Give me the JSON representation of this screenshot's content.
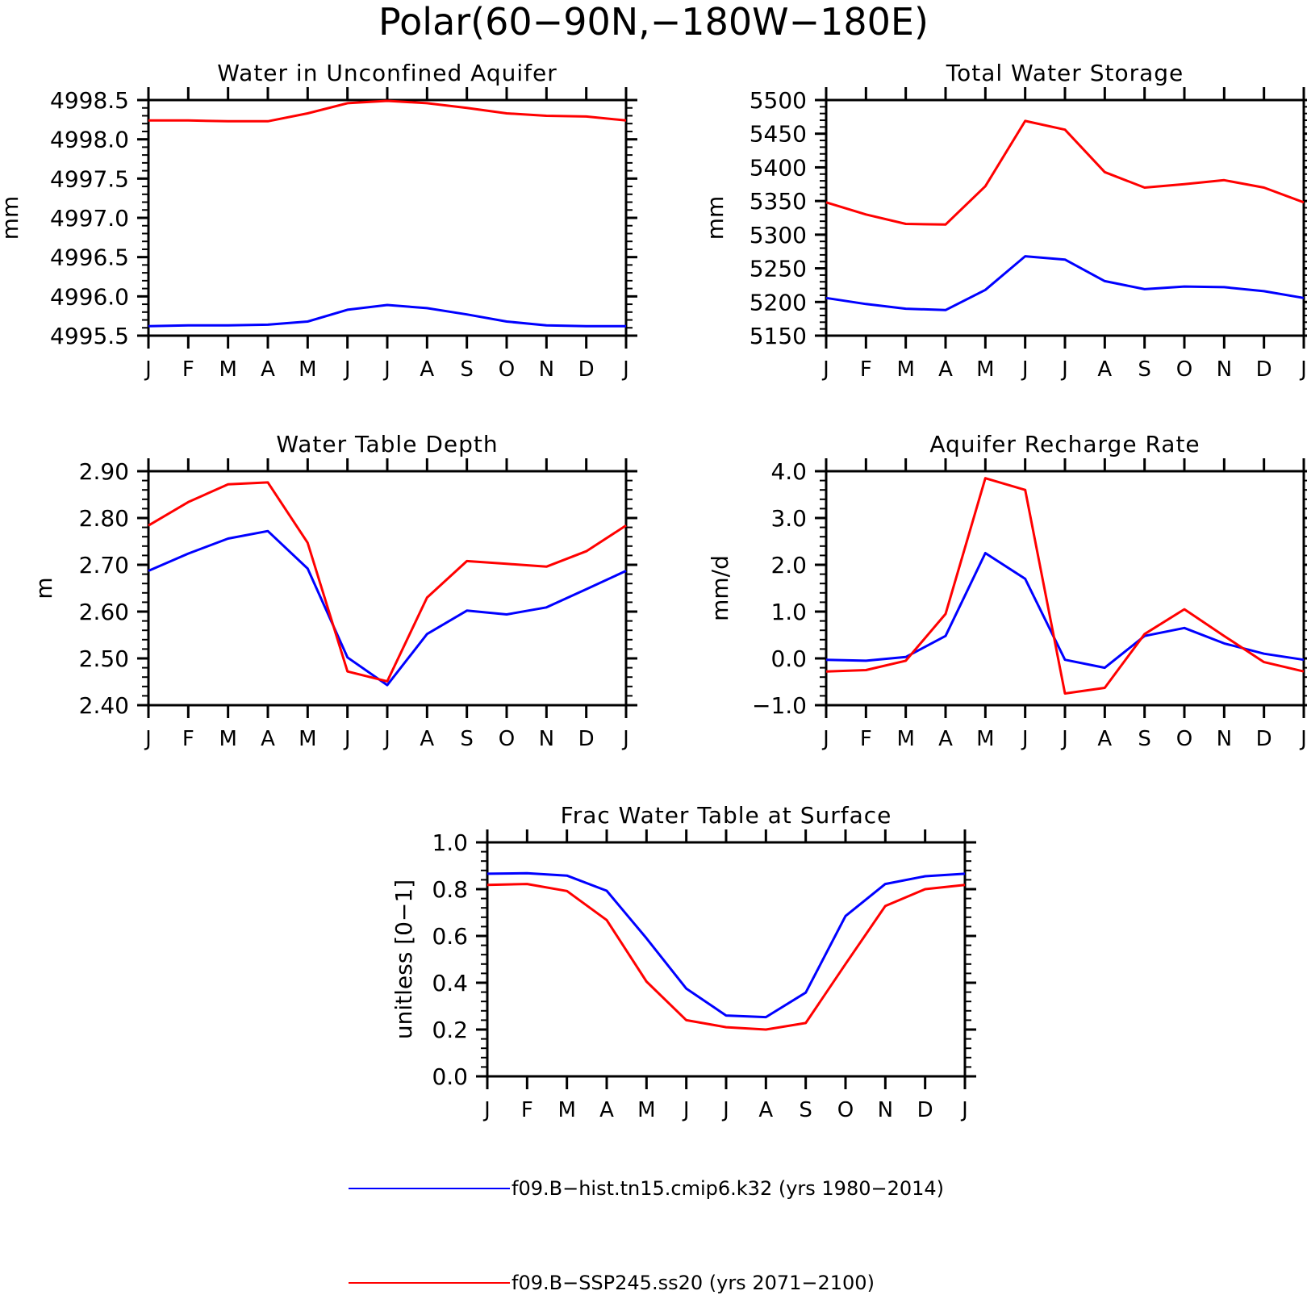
{
  "figure": {
    "title": "Polar(60−90N,−180W−180E)"
  },
  "colors": {
    "hist": "#0000ff",
    "ssp": "#ff0000",
    "axis": "#000000"
  },
  "legend": {
    "placement": "bottom-center",
    "entries": [
      {
        "label": "f09.B−hist.tn15.cmip6.k32 (yrs 1980−2014)",
        "color": "#0000ff"
      },
      {
        "label": "f09.B−SSP245.ss20 (yrs 2071−2100)",
        "color": "#ff0000"
      }
    ]
  },
  "chart_data": [
    {
      "type": "line",
      "title": "Water in Unconfined Aquifer",
      "xlabel": "",
      "ylabel": "mm",
      "x": [
        "J",
        "F",
        "M",
        "A",
        "M",
        "J",
        "J",
        "A",
        "S",
        "O",
        "N",
        "D",
        "J"
      ],
      "ylim": [
        4995.5,
        4998.5
      ],
      "yticks": [
        "4995.5",
        "4996.0",
        "4996.5",
        "4997.0",
        "4997.5",
        "4998.0",
        "4998.5"
      ],
      "series": [
        {
          "values": [
            4995.62,
            4995.63,
            4995.63,
            4995.64,
            4995.68,
            4995.83,
            4995.89,
            4995.85,
            4995.77,
            4995.68,
            4995.63,
            4995.62,
            4995.62
          ]
        },
        {
          "values": [
            4998.24,
            4998.24,
            4998.23,
            4998.23,
            4998.33,
            4998.46,
            4998.49,
            4998.46,
            4998.4,
            4998.33,
            4998.3,
            4998.29,
            4998.24
          ]
        }
      ]
    },
    {
      "type": "line",
      "title": "Total Water Storage",
      "xlabel": "",
      "ylabel": "mm",
      "x": [
        "J",
        "F",
        "M",
        "A",
        "M",
        "J",
        "J",
        "A",
        "S",
        "O",
        "N",
        "D",
        "J"
      ],
      "ylim": [
        5150,
        5500
      ],
      "yticks": [
        "5150",
        "5200",
        "5250",
        "5300",
        "5350",
        "5400",
        "5450",
        "5500"
      ],
      "series": [
        {
          "values": [
            5206,
            5197,
            5190,
            5188,
            5218,
            5268,
            5263,
            5231,
            5219,
            5223,
            5222,
            5216,
            5206
          ]
        },
        {
          "values": [
            5348,
            5330,
            5316,
            5315,
            5372,
            5469,
            5456,
            5393,
            5370,
            5375,
            5381,
            5370,
            5348
          ]
        }
      ]
    },
    {
      "type": "line",
      "title": "Water Table Depth",
      "xlabel": "",
      "ylabel": "m",
      "x": [
        "J",
        "F",
        "M",
        "A",
        "M",
        "J",
        "J",
        "A",
        "S",
        "O",
        "N",
        "D",
        "J"
      ],
      "ylim": [
        2.4,
        2.9
      ],
      "yticks": [
        "2.40",
        "2.50",
        "2.60",
        "2.70",
        "2.80",
        "2.90"
      ],
      "series": [
        {
          "values": [
            2.687,
            2.724,
            2.756,
            2.772,
            2.692,
            2.502,
            2.443,
            2.552,
            2.602,
            2.594,
            2.609,
            2.648,
            2.687
          ]
        },
        {
          "values": [
            2.784,
            2.834,
            2.872,
            2.876,
            2.747,
            2.472,
            2.451,
            2.63,
            2.708,
            2.702,
            2.696,
            2.729,
            2.784
          ]
        }
      ]
    },
    {
      "type": "line",
      "title": "Aquifer Recharge Rate",
      "xlabel": "",
      "ylabel": "mm/d",
      "x": [
        "J",
        "F",
        "M",
        "A",
        "M",
        "J",
        "J",
        "A",
        "S",
        "O",
        "N",
        "D",
        "J"
      ],
      "ylim": [
        -1.0,
        4.0
      ],
      "yticks": [
        "−1.0",
        "0.0",
        "1.0",
        "2.0",
        "3.0",
        "4.0"
      ],
      "series": [
        {
          "values": [
            -0.03,
            -0.05,
            0.03,
            0.48,
            2.25,
            1.7,
            -0.03,
            -0.2,
            0.48,
            0.65,
            0.32,
            0.1,
            -0.03
          ]
        },
        {
          "values": [
            -0.28,
            -0.25,
            -0.05,
            0.95,
            3.85,
            3.6,
            -0.75,
            -0.63,
            0.52,
            1.05,
            0.48,
            -0.08,
            -0.28
          ]
        }
      ]
    },
    {
      "type": "line",
      "title": "Frac Water Table at Surface",
      "xlabel": "",
      "ylabel": "unitless [0−1]",
      "x": [
        "J",
        "F",
        "M",
        "A",
        "M",
        "J",
        "J",
        "A",
        "S",
        "O",
        "N",
        "D",
        "J"
      ],
      "ylim": [
        0.0,
        1.0
      ],
      "yticks": [
        "0.0",
        "0.2",
        "0.4",
        "0.6",
        "0.8",
        "1.0"
      ],
      "series": [
        {
          "values": [
            0.866,
            0.868,
            0.858,
            0.793,
            0.59,
            0.375,
            0.26,
            0.253,
            0.358,
            0.685,
            0.822,
            0.855,
            0.866
          ]
        },
        {
          "values": [
            0.818,
            0.822,
            0.792,
            0.668,
            0.405,
            0.24,
            0.21,
            0.2,
            0.228,
            0.48,
            0.728,
            0.8,
            0.818
          ]
        }
      ]
    }
  ]
}
